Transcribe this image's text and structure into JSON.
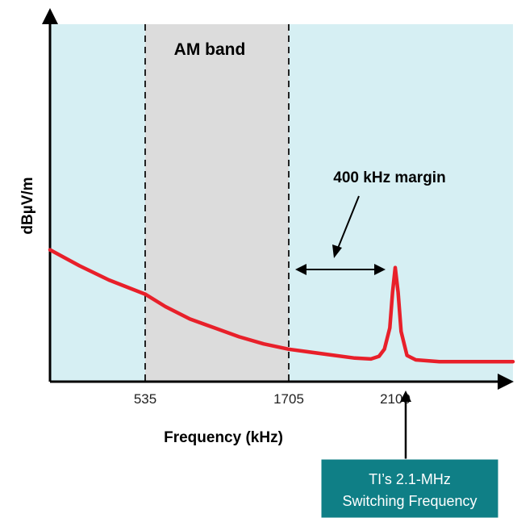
{
  "chart_data": {
    "type": "line",
    "title": "",
    "xlabel": "Frequency (kHz)",
    "ylabel": "dBµV/m",
    "x_ticks": [
      "535",
      "1705",
      "2100"
    ],
    "bands": [
      {
        "label": "AM band",
        "x_start": 535,
        "x_end": 1705
      }
    ],
    "annotations": {
      "margin_label": "400 kHz margin",
      "callout_line1": "TI’s 2.1-MHz",
      "callout_line2": "Switching Frequency"
    },
    "series": [
      {
        "color": "#e8202a",
        "x": [
          50,
          200,
          350,
          535,
          700,
          900,
          1100,
          1300,
          1500,
          1705,
          1850,
          1950,
          2010,
          2040,
          2060,
          2080,
          2090,
          2100,
          2110,
          2120,
          2140,
          2170,
          2250,
          2400,
          2500
        ],
        "y": [
          62,
          53,
          45,
          37,
          30,
          23,
          18,
          13,
          9,
          6,
          3,
          1,
          0.5,
          2,
          6,
          18,
          38,
          52,
          38,
          16,
          2.5,
          0,
          -1,
          -1,
          -1
        ]
      }
    ],
    "colors": {
      "plot_background": "#d6eff3",
      "am_band": "#dcdcdc",
      "callout_fill": "#0f7f86"
    }
  }
}
